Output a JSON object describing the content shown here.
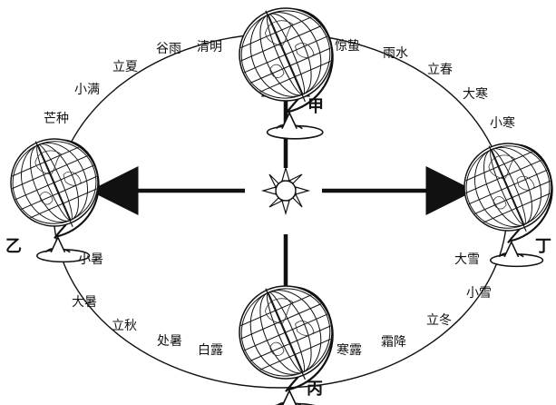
{
  "positions": {
    "jia": "甲",
    "yi": "乙",
    "bing": "丙",
    "ding": "丁"
  },
  "solar_terms": {
    "guyu": "谷雨",
    "qingming": "清明",
    "jingzhe": "惊蛰",
    "yushui": "雨水",
    "lichun": "立春",
    "dahan": "大寒",
    "xiaohan": "小寒",
    "lixia": "立夏",
    "xiaoman": "小满",
    "mangzhong": "芒种",
    "xiaoshu": "小暑",
    "dashu": "大暑",
    "liqiu": "立秋",
    "chushu": "处暑",
    "bailu": "白露",
    "hanlu": "寒露",
    "shuangjiang": "霜降",
    "lidong": "立冬",
    "xiaoxue": "小雪",
    "daxue": "大雪"
  },
  "colors": {
    "ink": "#111111",
    "paper": "#ffffff"
  },
  "icons": {
    "sun": "sun-icon",
    "globe": "globe-icon",
    "arrow": "arrow"
  }
}
